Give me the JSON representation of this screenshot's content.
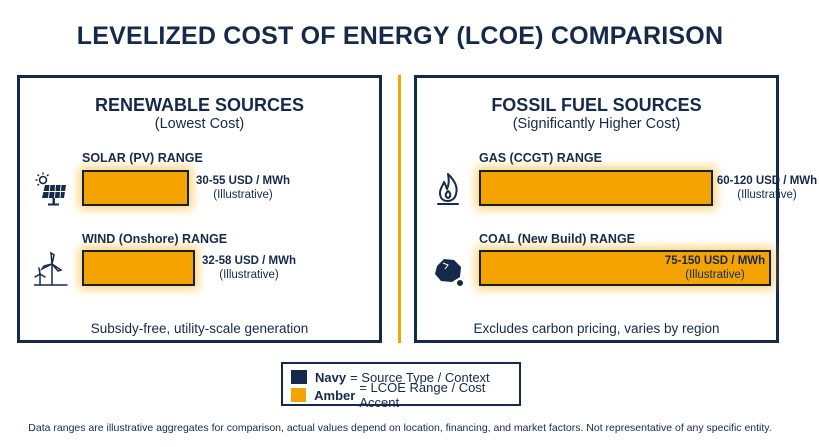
{
  "title": "LEVELIZED COST OF ENERGY (LCOE) COMPARISON",
  "panels": {
    "renewable": {
      "title": "RENEWABLE SOURCES",
      "subtitle": "(Lowest Cost)",
      "footer": "Subsidy-free, utility-scale generation"
    },
    "fossil": {
      "title": "FOSSIL FUEL SOURCES",
      "subtitle": "(Significantly Higher Cost)",
      "footer": "Excludes carbon pricing, varies by region"
    }
  },
  "chart_data": {
    "type": "bar",
    "unit": "USD / MWh",
    "series": [
      {
        "label": "SOLAR (PV) RANGE",
        "group": "renewable",
        "min": 30,
        "max": 55,
        "value_text": "30-55 USD / MWh",
        "note": "(Illustrative)",
        "icon": "solar-panel-icon"
      },
      {
        "label": "WIND (Onshore) RANGE",
        "group": "renewable",
        "min": 32,
        "max": 58,
        "value_text": "32-58 USD / MWh",
        "note": "(Illustrative)",
        "icon": "wind-turbine-icon"
      },
      {
        "label": "GAS (CCGT) RANGE",
        "group": "fossil",
        "min": 60,
        "max": 120,
        "value_text": "60-120 USD / MWh",
        "note": "(Illustrative)",
        "icon": "gas-flame-icon"
      },
      {
        "label": "COAL (New Build) RANGE",
        "group": "fossil",
        "min": 75,
        "max": 150,
        "value_text": "75-150 USD / MWh",
        "note": "(Illustrative)",
        "icon": "coal-lump-icon"
      }
    ]
  },
  "legend": [
    {
      "key": "Navy",
      "text": "= Source Type / Context",
      "color": "#152a4a"
    },
    {
      "key": "Amber",
      "text": "= LCOE Range / Cost Accent",
      "color": "#f5a300"
    }
  ],
  "footnote": "Data ranges are illustrative aggregates for comparison, actual values depend on location, financing, and market factors. Not representative of any specific entity.",
  "colors": {
    "navy": "#152a4a",
    "amber": "#f5a300",
    "divider": "#f0a500"
  }
}
